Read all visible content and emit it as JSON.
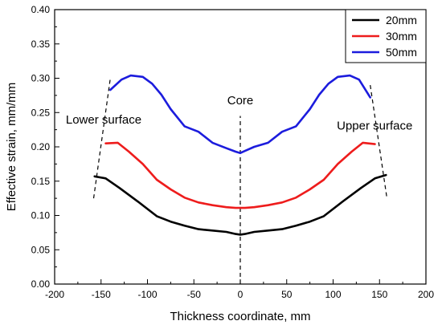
{
  "chart_data": {
    "type": "line",
    "title": "",
    "xlabel": "Thickness coordinate, mm",
    "ylabel": "Effective strain, mm/mm",
    "xlim": [
      -200,
      200
    ],
    "ylim": [
      0,
      0.4
    ],
    "xticks": [
      -200,
      -150,
      -100,
      -50,
      0,
      50,
      100,
      150,
      200
    ],
    "yticks": [
      0.0,
      0.05,
      0.1,
      0.15,
      0.2,
      0.25,
      0.3,
      0.35,
      0.4
    ],
    "xtick_labels": [
      "-200",
      "-150",
      "-100",
      "-50",
      "0",
      "50",
      "100",
      "150",
      "200"
    ],
    "ytick_labels": [
      "0.00",
      "0.05",
      "0.10",
      "0.15",
      "0.20",
      "0.25",
      "0.30",
      "0.35",
      "0.40"
    ],
    "grid": false,
    "legend": {
      "placement": "top-right"
    },
    "series": [
      {
        "name": "20mm",
        "color": "#000000",
        "x": [
          -157,
          -145,
          -130,
          -110,
          -90,
          -75,
          -60,
          -45,
          -30,
          -15,
          -5,
          0,
          5,
          15,
          30,
          45,
          60,
          75,
          90,
          110,
          130,
          145,
          157
        ],
        "y": [
          0.157,
          0.154,
          0.14,
          0.12,
          0.099,
          0.091,
          0.085,
          0.08,
          0.078,
          0.076,
          0.073,
          0.072,
          0.073,
          0.076,
          0.078,
          0.08,
          0.085,
          0.091,
          0.099,
          0.12,
          0.14,
          0.154,
          0.159
        ]
      },
      {
        "name": "30mm",
        "color": "#ee1c1c",
        "x": [
          -145,
          -132,
          -120,
          -105,
          -90,
          -75,
          -60,
          -45,
          -30,
          -15,
          -5,
          0,
          5,
          15,
          30,
          45,
          60,
          75,
          90,
          105,
          120,
          132,
          145
        ],
        "y": [
          0.205,
          0.206,
          0.193,
          0.175,
          0.152,
          0.138,
          0.126,
          0.119,
          0.115,
          0.112,
          0.111,
          0.111,
          0.111,
          0.112,
          0.115,
          0.119,
          0.126,
          0.138,
          0.152,
          0.175,
          0.193,
          0.206,
          0.204
        ]
      },
      {
        "name": "50mm",
        "color": "#1c1cdd",
        "x": [
          -140,
          -128,
          -118,
          -105,
          -95,
          -85,
          -75,
          -60,
          -45,
          -30,
          -15,
          -5,
          0,
          5,
          15,
          30,
          45,
          60,
          75,
          85,
          95,
          105,
          118,
          128,
          140
        ],
        "y": [
          0.283,
          0.298,
          0.304,
          0.302,
          0.292,
          0.276,
          0.255,
          0.23,
          0.222,
          0.206,
          0.198,
          0.193,
          0.191,
          0.194,
          0.2,
          0.206,
          0.222,
          0.23,
          0.255,
          0.276,
          0.292,
          0.302,
          0.304,
          0.298,
          0.272
        ]
      }
    ],
    "annotations": [
      {
        "name": "core",
        "text": "Core"
      },
      {
        "name": "lower-surface",
        "text": "Lower surface"
      },
      {
        "name": "upper-surface",
        "text": "Upper surface"
      }
    ],
    "guide_lines": [
      {
        "name": "core-guide",
        "x": [
          0,
          0
        ],
        "y": [
          0.0,
          0.245
        ]
      },
      {
        "name": "lower-surface-guide",
        "x": [
          -158,
          -140
        ],
        "y": [
          0.125,
          0.3
        ]
      },
      {
        "name": "upper-surface-guide",
        "x": [
          140,
          158
        ],
        "y": [
          0.29,
          0.125
        ]
      }
    ]
  }
}
